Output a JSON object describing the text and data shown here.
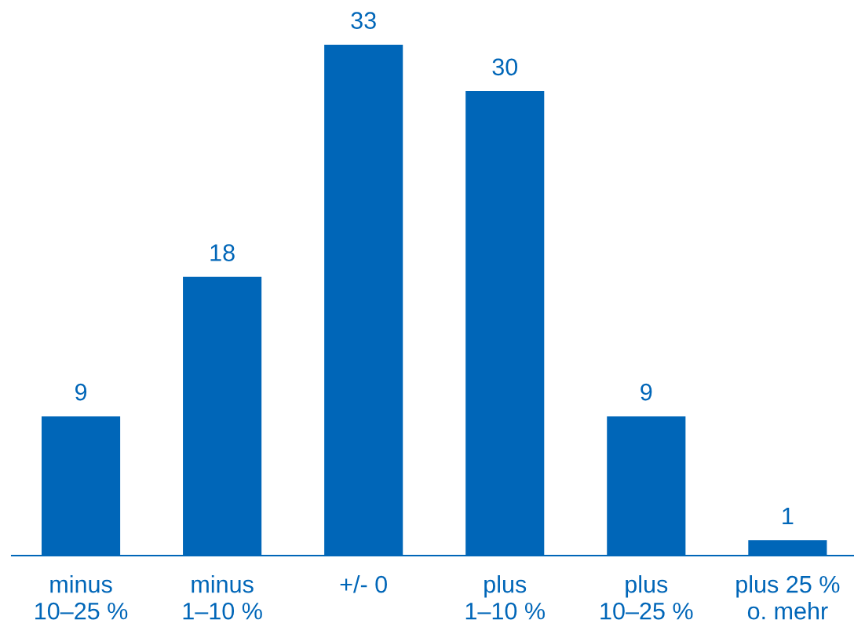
{
  "chart_data": {
    "type": "bar",
    "categories": [
      "minus\n10–25 %",
      "minus\n1–10 %",
      "+/- 0",
      "plus\n1–10 %",
      "plus\n10–25 %",
      "plus 25 %\no. mehr"
    ],
    "values": [
      9,
      18,
      33,
      30,
      9,
      1
    ],
    "color": "#0066b8",
    "data_labels": true,
    "grid": false,
    "legend": false
  }
}
